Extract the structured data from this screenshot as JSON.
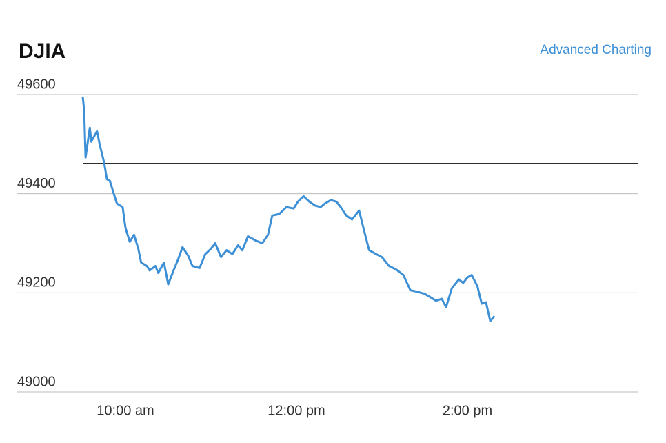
{
  "chart_data": {
    "type": "line",
    "title": "DJIA",
    "link": "Advanced Charting",
    "x": [
      570,
      571,
      572,
      575,
      576,
      580,
      582,
      585,
      587,
      589,
      592,
      594,
      598,
      600,
      603,
      606,
      609,
      611,
      615,
      617,
      621,
      623,
      627,
      630,
      634,
      637,
      640,
      644,
      647,
      652,
      656,
      660,
      663,
      667,
      671,
      675,
      679,
      682,
      686,
      691,
      696,
      700,
      703,
      708,
      713,
      718,
      721,
      725,
      729,
      733,
      737,
      740,
      744,
      748,
      751,
      755,
      759,
      764,
      767,
      771,
      776,
      780,
      785,
      790,
      795,
      800,
      805,
      810,
      814,
      818,
      822,
      825,
      829,
      834,
      837,
      840,
      843,
      847,
      850,
      853,
      856,
      859
    ],
    "series": [
      {
        "name": "DJIA",
        "color": "#3d8fd6",
        "values": [
          49596,
          49568,
          49473,
          49533,
          49505,
          49526,
          49498,
          49463,
          49429,
          49426,
          49398,
          49380,
          49373,
          49331,
          49303,
          49317,
          49289,
          49261,
          49254,
          49245,
          49254,
          49240,
          49261,
          49217,
          49247,
          49268,
          49292,
          49275,
          49254,
          49250,
          49278,
          49289,
          49300,
          49272,
          49286,
          49278,
          49296,
          49286,
          49314,
          49306,
          49300,
          49317,
          49356,
          49359,
          49373,
          49370,
          49384,
          49395,
          49384,
          49376,
          49373,
          49380,
          49387,
          49384,
          49373,
          49356,
          49348,
          49366,
          49331,
          49286,
          49278,
          49272,
          49254,
          49247,
          49236,
          49205,
          49202,
          49198,
          49191,
          49184,
          49188,
          49171,
          49209,
          49227,
          49220,
          49231,
          49236,
          49213,
          49178,
          49181,
          49143,
          49153
        ]
      }
    ],
    "reference_line": 49461,
    "reference_color": "#111111",
    "xlim": [
      570,
      960
    ],
    "xticks": [
      {
        "value": 600,
        "label": "10:00 am"
      },
      {
        "value": 720,
        "label": "12:00 pm"
      },
      {
        "value": 840,
        "label": "2:00 pm"
      }
    ],
    "ylim": [
      49000,
      49600
    ],
    "yticks": [
      49000,
      49200,
      49400,
      49600
    ],
    "grid": true
  }
}
